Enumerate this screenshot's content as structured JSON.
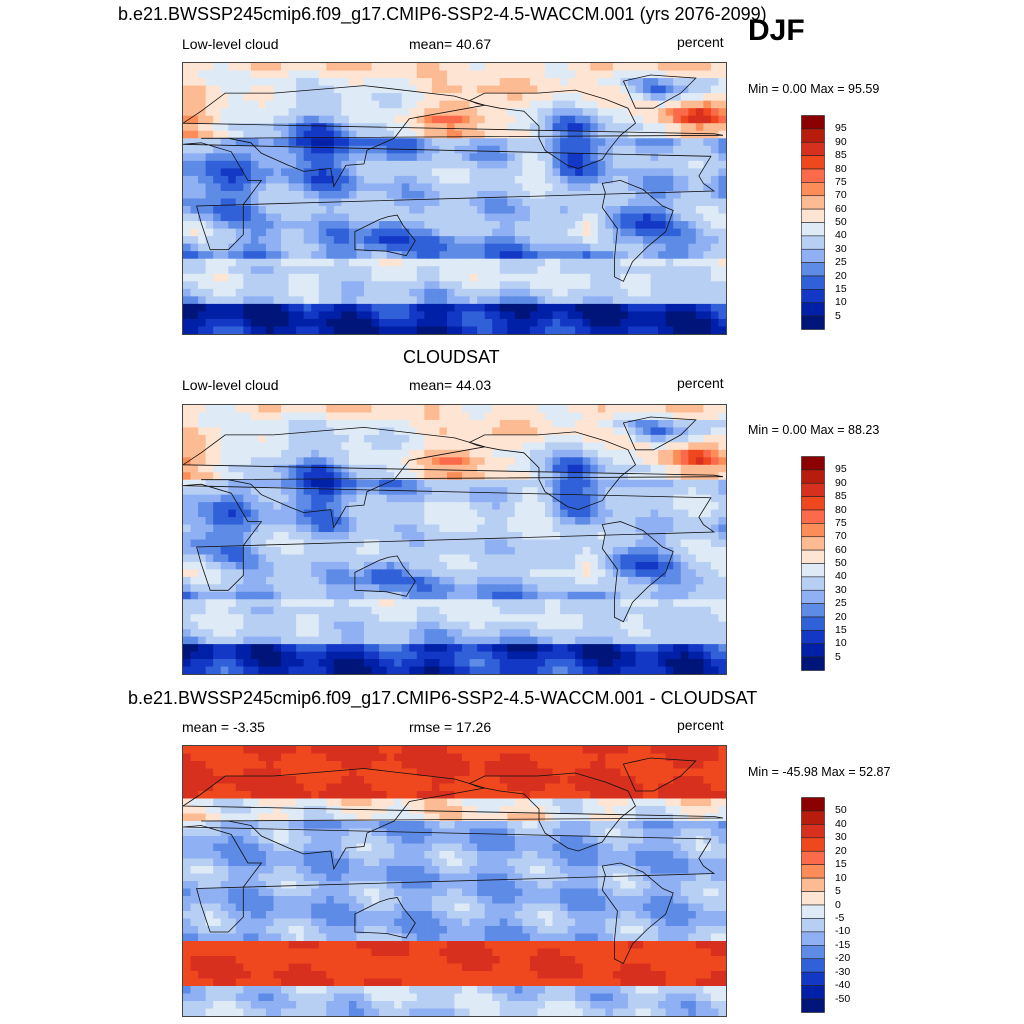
{
  "season": "DJF",
  "panels": [
    {
      "title": "b.e21.BWSSP245cmip6.f09_g17.CMIP6-SSP2-4.5-WACCM.001 (yrs 2076-2099)",
      "left": "Low-level cloud",
      "center": "mean=  40.67",
      "right": "percent",
      "minmax": "Min =   0.00 Max =  95.59",
      "kind": "model",
      "colorbar_labels": [
        "95",
        "90",
        "85",
        "80",
        "75",
        "70",
        "60",
        "50",
        "40",
        "30",
        "25",
        "20",
        "15",
        "10",
        "5"
      ]
    },
    {
      "title": "CLOUDSAT",
      "left": "Low-level cloud",
      "center": "mean=  44.03",
      "right": "percent",
      "minmax": "Min =   0.00 Max =  88.23",
      "kind": "obs",
      "colorbar_labels": [
        "95",
        "90",
        "85",
        "80",
        "75",
        "70",
        "60",
        "50",
        "40",
        "30",
        "25",
        "20",
        "15",
        "10",
        "5"
      ]
    },
    {
      "title": "b.e21.BWSSP245cmip6.f09_g17.CMIP6-SSP2-4.5-WACCM.001 - CLOUDSAT",
      "left": "mean =  -3.35",
      "center": "rmse =  17.26",
      "right": "percent",
      "minmax": "Min = -45.98 Max =  52.87",
      "kind": "diff",
      "colorbar_labels": [
        "50",
        "40",
        "30",
        "20",
        "15",
        "10",
        "5",
        "0",
        "-5",
        "-10",
        "-15",
        "-20",
        "-30",
        "-40",
        "-50"
      ]
    }
  ],
  "colorbar_colors": [
    "#8b0000",
    "#b71c0c",
    "#d7301f",
    "#f0481e",
    "#fb6a4a",
    "#fc8d59",
    "#fdbb94",
    "#fee4d2",
    "#deebf7",
    "#b8cff4",
    "#8fb0f2",
    "#5d8be6",
    "#3161d8",
    "#1438c6",
    "#0020a8",
    "#00157a"
  ]
}
